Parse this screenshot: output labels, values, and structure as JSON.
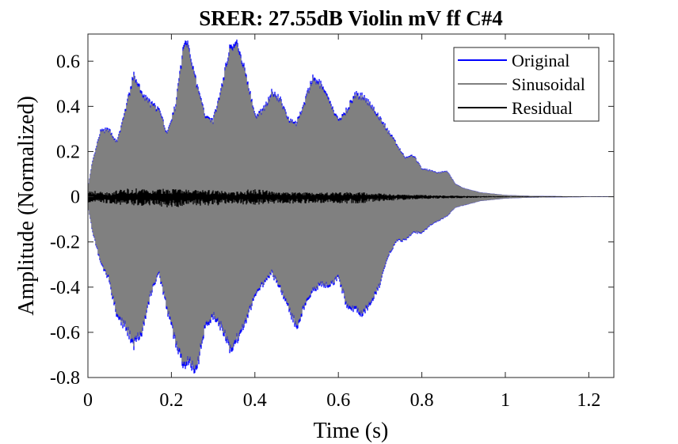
{
  "chart_data": {
    "type": "line",
    "title": "SRER: 27.55dB Violin mV ff C#4",
    "xlabel": "Time (s)",
    "ylabel": "Amplitude (Normalized)",
    "xlim": [
      0,
      1.26
    ],
    "ylim": [
      -0.8,
      0.72
    ],
    "xticks": [
      0,
      0.2,
      0.4,
      0.6,
      0.8,
      1,
      1.2
    ],
    "xtick_labels": [
      "0",
      "0.2",
      "0.4",
      "0.6",
      "0.8",
      "1",
      "1.2"
    ],
    "yticks": [
      -0.8,
      -0.6,
      -0.4,
      -0.2,
      0,
      0.2,
      0.4,
      0.6
    ],
    "ytick_labels": [
      "-0.8",
      "-0.6",
      "-0.4",
      "-0.2",
      "0",
      "0.2",
      "0.4",
      "0.6"
    ],
    "grid": false,
    "legend_position": "top-right",
    "series": [
      {
        "name": "Original",
        "color": "#0000ff",
        "envelope_x": [
          0,
          0.01,
          0.03,
          0.05,
          0.07,
          0.09,
          0.11,
          0.13,
          0.15,
          0.17,
          0.19,
          0.21,
          0.23,
          0.24,
          0.26,
          0.28,
          0.3,
          0.32,
          0.34,
          0.36,
          0.38,
          0.4,
          0.42,
          0.44,
          0.46,
          0.48,
          0.5,
          0.52,
          0.54,
          0.56,
          0.58,
          0.6,
          0.62,
          0.64,
          0.66,
          0.68,
          0.7,
          0.72,
          0.74,
          0.76,
          0.78,
          0.8,
          0.82,
          0.84,
          0.86,
          0.88,
          0.9,
          0.94,
          1.0,
          1.06,
          1.15,
          1.26
        ],
        "upper": [
          0.04,
          0.15,
          0.3,
          0.31,
          0.25,
          0.4,
          0.56,
          0.47,
          0.43,
          0.4,
          0.29,
          0.42,
          0.7,
          0.71,
          0.52,
          0.38,
          0.35,
          0.5,
          0.69,
          0.7,
          0.55,
          0.37,
          0.4,
          0.48,
          0.45,
          0.36,
          0.34,
          0.44,
          0.55,
          0.51,
          0.43,
          0.35,
          0.4,
          0.47,
          0.46,
          0.42,
          0.36,
          0.3,
          0.24,
          0.18,
          0.19,
          0.13,
          0.12,
          0.11,
          0.12,
          0.06,
          0.04,
          0.02,
          0.008,
          0.004,
          0.002,
          0.001
        ],
        "lower": [
          -0.04,
          -0.15,
          -0.3,
          -0.38,
          -0.55,
          -0.6,
          -0.68,
          -0.62,
          -0.45,
          -0.35,
          -0.52,
          -0.67,
          -0.78,
          -0.76,
          -0.8,
          -0.6,
          -0.55,
          -0.6,
          -0.7,
          -0.65,
          -0.57,
          -0.45,
          -0.4,
          -0.35,
          -0.42,
          -0.51,
          -0.6,
          -0.5,
          -0.43,
          -0.4,
          -0.41,
          -0.37,
          -0.5,
          -0.52,
          -0.54,
          -0.48,
          -0.4,
          -0.27,
          -0.2,
          -0.2,
          -0.16,
          -0.17,
          -0.13,
          -0.11,
          -0.09,
          -0.05,
          -0.04,
          -0.02,
          -0.008,
          -0.004,
          -0.002,
          -0.001
        ]
      },
      {
        "name": "Sinusoidal",
        "color": "#808080",
        "envelope_scale": 0.975
      },
      {
        "name": "Residual",
        "color": "#000000",
        "envelope_x": [
          0,
          0.05,
          0.1,
          0.15,
          0.2,
          0.25,
          0.3,
          0.35,
          0.4,
          0.45,
          0.5,
          0.55,
          0.6,
          0.65,
          0.7,
          0.75,
          0.8,
          0.9,
          1.0,
          1.26
        ],
        "upper": [
          0.03,
          0.02,
          0.04,
          0.03,
          0.04,
          0.03,
          0.03,
          0.02,
          0.04,
          0.02,
          0.02,
          0.02,
          0.02,
          0.02,
          0.015,
          0.01,
          0.008,
          0.004,
          0.002,
          0.001
        ],
        "lower": [
          -0.03,
          -0.03,
          -0.04,
          -0.04,
          -0.05,
          -0.04,
          -0.04,
          -0.03,
          -0.04,
          -0.03,
          -0.03,
          -0.03,
          -0.03,
          -0.03,
          -0.02,
          -0.015,
          -0.01,
          -0.006,
          -0.002,
          -0.001
        ]
      }
    ]
  }
}
